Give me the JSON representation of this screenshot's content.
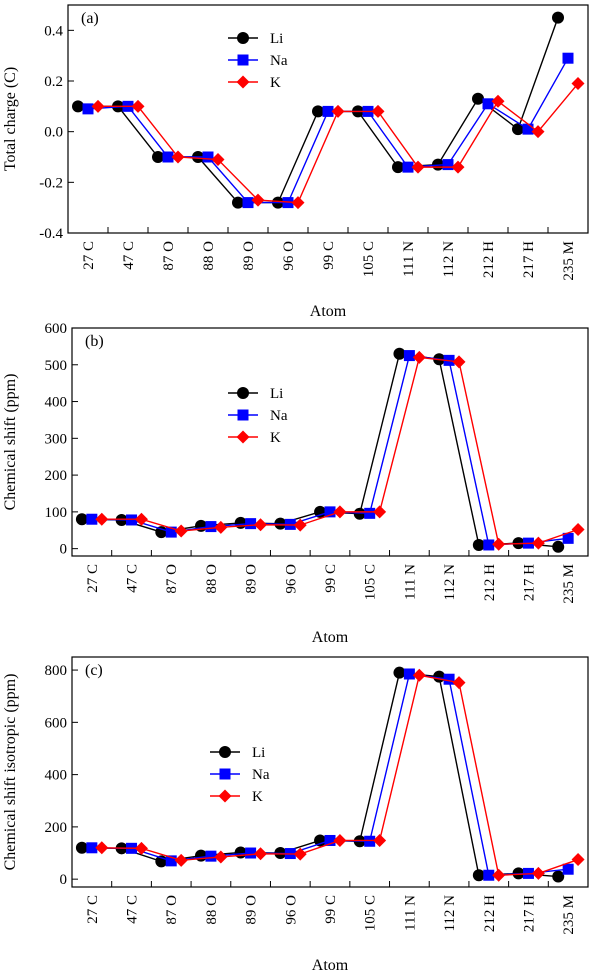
{
  "chart_data": [
    {
      "type": "line",
      "panel_label": "(a)",
      "ylabel": "Total charge (C)",
      "xlabel": "Atom",
      "categories": [
        "27 C",
        "47 C",
        "87 O",
        "88 O",
        "89 O",
        "96 O",
        "99 C",
        "105 C",
        "111 N",
        "112 N",
        "212 H",
        "217 H",
        "235 M"
      ],
      "ylim": [
        -0.4,
        0.5
      ],
      "yticks": [
        -0.4,
        -0.2,
        0.0,
        0.2,
        0.4
      ],
      "ytick_labels": [
        "-0.4",
        "-0.2",
        "0.0",
        "0.2",
        "0.4"
      ],
      "legend_position": "top-center",
      "series": [
        {
          "name": "Li",
          "color": "#000000",
          "marker": "circle",
          "values": [
            0.1,
            0.1,
            -0.1,
            -0.1,
            -0.28,
            -0.28,
            0.08,
            0.08,
            -0.14,
            -0.13,
            0.13,
            0.01,
            0.45
          ]
        },
        {
          "name": "Na",
          "color": "#0000ff",
          "marker": "square",
          "values": [
            0.09,
            0.1,
            -0.1,
            -0.1,
            -0.28,
            -0.28,
            0.08,
            0.08,
            -0.14,
            -0.13,
            0.11,
            0.01,
            0.29
          ]
        },
        {
          "name": "K",
          "color": "#ff0000",
          "marker": "diamond",
          "values": [
            0.1,
            0.1,
            -0.1,
            -0.11,
            -0.27,
            -0.28,
            0.08,
            0.08,
            -0.14,
            -0.14,
            0.12,
            0.0,
            0.19
          ]
        }
      ]
    },
    {
      "type": "line",
      "panel_label": "(b)",
      "ylabel": "Chemical shift (ppm)",
      "xlabel": "Atom",
      "categories": [
        "27 C",
        "47 C",
        "87 O",
        "88 O",
        "89 O",
        "96 O",
        "99 C",
        "105 C",
        "111 N",
        "112 N",
        "212 H",
        "217 H",
        "235 M"
      ],
      "ylim": [
        -20,
        600
      ],
      "yticks": [
        0,
        100,
        200,
        300,
        400,
        500,
        600
      ],
      "ytick_labels": [
        "0",
        "100",
        "200",
        "300",
        "400",
        "500",
        "600"
      ],
      "legend_position": "left-center",
      "series": [
        {
          "name": "Li",
          "color": "#000000",
          "marker": "circle",
          "values": [
            80,
            78,
            45,
            62,
            70,
            68,
            100,
            95,
            530,
            515,
            10,
            15,
            5
          ]
        },
        {
          "name": "Na",
          "color": "#0000ff",
          "marker": "square",
          "values": [
            80,
            78,
            45,
            60,
            68,
            66,
            100,
            96,
            525,
            512,
            10,
            15,
            28
          ]
        },
        {
          "name": "K",
          "color": "#ff0000",
          "marker": "diamond",
          "values": [
            80,
            80,
            48,
            58,
            65,
            64,
            100,
            100,
            520,
            508,
            12,
            15,
            52
          ]
        }
      ]
    },
    {
      "type": "line",
      "panel_label": "(c)",
      "ylabel": "Chemical shift isotropic (ppm)",
      "xlabel": "Atom",
      "categories": [
        "27 C",
        "47 C",
        "87 O",
        "88 O",
        "89 O",
        "96 O",
        "99 C",
        "105 C",
        "111 N",
        "112 N",
        "212 H",
        "217 H",
        "235 M"
      ],
      "ylim": [
        -30,
        850
      ],
      "yticks": [
        0,
        200,
        400,
        600,
        800
      ],
      "ytick_labels": [
        "0",
        "200",
        "400",
        "600",
        "800"
      ],
      "legend_position": "left-center",
      "series": [
        {
          "name": "Li",
          "color": "#000000",
          "marker": "circle",
          "values": [
            120,
            118,
            68,
            90,
            102,
            100,
            148,
            145,
            790,
            775,
            15,
            22,
            10
          ]
        },
        {
          "name": "Na",
          "color": "#0000ff",
          "marker": "square",
          "values": [
            120,
            118,
            70,
            88,
            100,
            98,
            148,
            145,
            785,
            765,
            15,
            22,
            38
          ]
        },
        {
          "name": "K",
          "color": "#ff0000",
          "marker": "diamond",
          "values": [
            120,
            118,
            72,
            85,
            97,
            96,
            148,
            148,
            780,
            752,
            15,
            22,
            75
          ]
        }
      ]
    }
  ]
}
